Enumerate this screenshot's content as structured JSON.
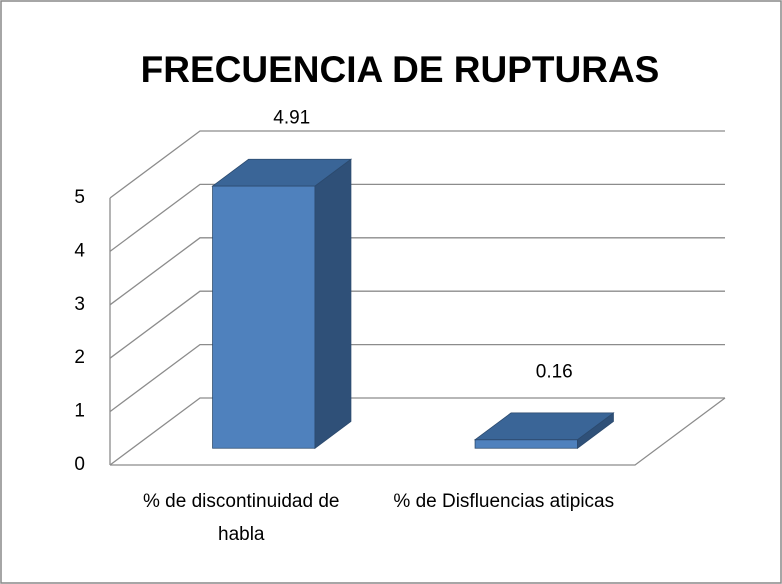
{
  "chart_data": {
    "type": "bar3d",
    "title": "FRECUENCIA DE RUPTURAS",
    "categories": [
      "% de discontinuidad de habla",
      "% de Disfluencias atipicas"
    ],
    "values": [
      4.91,
      0.16
    ],
    "color": "#4f81bd",
    "ylim": [
      0,
      5
    ],
    "yticks": [
      0,
      1,
      2,
      3,
      4,
      5
    ],
    "grid": true
  }
}
